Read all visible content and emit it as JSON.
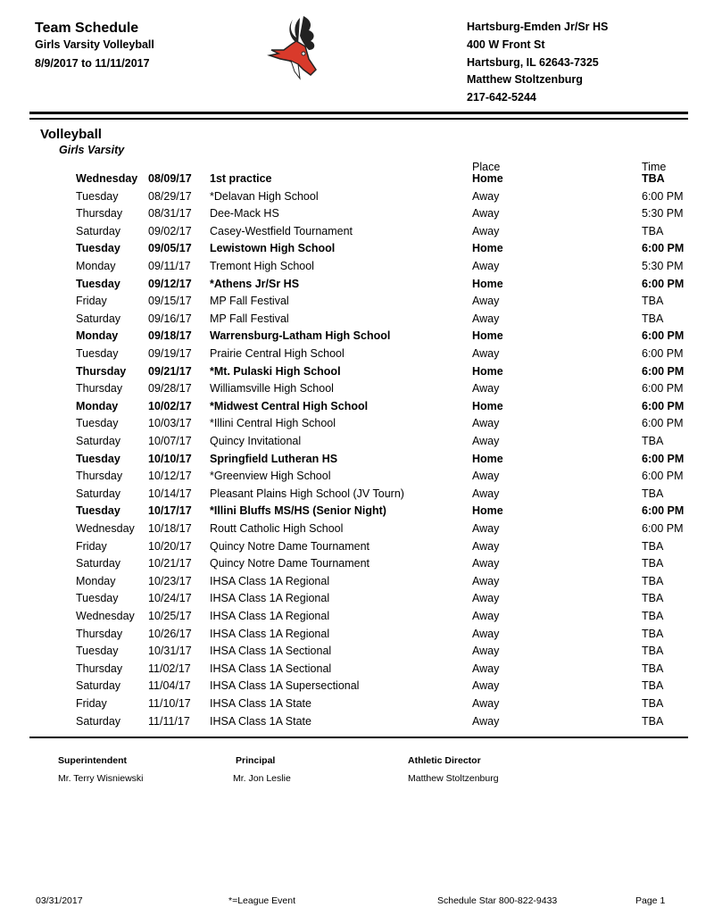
{
  "header": {
    "title": "Team Schedule",
    "subtitle": "Girls Varsity Volleyball",
    "date_range": "8/9/2017 to 11/11/2017",
    "school": "Hartsburg-Emden Jr/Sr HS",
    "address": "400 W Front St",
    "city": "Hartsburg, IL 62643-7325",
    "contact": "Matthew Stoltzenburg",
    "phone": "217-642-5244",
    "logo": "red-deer-mascot-logo"
  },
  "section": {
    "sport": "Volleyball",
    "level": "Girls Varsity",
    "place_header": "Place",
    "time_header": "Time"
  },
  "games": [
    {
      "day": "Wednesday",
      "date": "08/09/17",
      "opponent": "1st practice",
      "place": "Home",
      "time": "TBA"
    },
    {
      "day": "Tuesday",
      "date": "08/29/17",
      "opponent": "*Delavan High School",
      "place": "Away",
      "time": "6:00 PM"
    },
    {
      "day": "Thursday",
      "date": "08/31/17",
      "opponent": "Dee-Mack HS",
      "place": "Away",
      "time": "5:30 PM"
    },
    {
      "day": "Saturday",
      "date": "09/02/17",
      "opponent": "Casey-Westfield Tournament",
      "place": "Away",
      "time": "TBA"
    },
    {
      "day": "Tuesday",
      "date": "09/05/17",
      "opponent": "Lewistown High School",
      "place": "Home",
      "time": "6:00 PM"
    },
    {
      "day": "Monday",
      "date": "09/11/17",
      "opponent": "Tremont High School",
      "place": "Away",
      "time": "5:30 PM"
    },
    {
      "day": "Tuesday",
      "date": "09/12/17",
      "opponent": "*Athens Jr/Sr HS",
      "place": "Home",
      "time": "6:00 PM"
    },
    {
      "day": "Friday",
      "date": "09/15/17",
      "opponent": "MP Fall Festival",
      "place": "Away",
      "time": "TBA"
    },
    {
      "day": "Saturday",
      "date": "09/16/17",
      "opponent": "MP Fall Festival",
      "place": "Away",
      "time": "TBA"
    },
    {
      "day": "Monday",
      "date": "09/18/17",
      "opponent": "Warrensburg-Latham High School",
      "place": "Home",
      "time": "6:00 PM"
    },
    {
      "day": "Tuesday",
      "date": "09/19/17",
      "opponent": "Prairie Central High School",
      "place": "Away",
      "time": "6:00 PM"
    },
    {
      "day": "Thursday",
      "date": "09/21/17",
      "opponent": "*Mt. Pulaski High School",
      "place": "Home",
      "time": "6:00 PM"
    },
    {
      "day": "Thursday",
      "date": "09/28/17",
      "opponent": "Williamsville High School",
      "place": "Away",
      "time": "6:00 PM"
    },
    {
      "day": "Monday",
      "date": "10/02/17",
      "opponent": "*Midwest Central High School",
      "place": "Home",
      "time": "6:00 PM"
    },
    {
      "day": "Tuesday",
      "date": "10/03/17",
      "opponent": "*Illini Central High School",
      "place": "Away",
      "time": "6:00 PM"
    },
    {
      "day": "Saturday",
      "date": "10/07/17",
      "opponent": "Quincy Invitational",
      "place": "Away",
      "time": "TBA"
    },
    {
      "day": "Tuesday",
      "date": "10/10/17",
      "opponent": "Springfield Lutheran HS",
      "place": "Home",
      "time": "6:00 PM"
    },
    {
      "day": "Thursday",
      "date": "10/12/17",
      "opponent": "*Greenview High School",
      "place": "Away",
      "time": "6:00 PM"
    },
    {
      "day": "Saturday",
      "date": "10/14/17",
      "opponent": "Pleasant Plains High School (JV Tourn)",
      "place": "Away",
      "time": "TBA"
    },
    {
      "day": "Tuesday",
      "date": "10/17/17",
      "opponent": "*Illini Bluffs MS/HS (Senior Night)",
      "place": "Home",
      "time": "6:00 PM"
    },
    {
      "day": "Wednesday",
      "date": "10/18/17",
      "opponent": "Routt Catholic High School",
      "place": "Away",
      "time": "6:00 PM"
    },
    {
      "day": "Friday",
      "date": "10/20/17",
      "opponent": "Quincy Notre Dame Tournament",
      "place": "Away",
      "time": "TBA"
    },
    {
      "day": "Saturday",
      "date": "10/21/17",
      "opponent": "Quincy Notre Dame Tournament",
      "place": "Away",
      "time": "TBA"
    },
    {
      "day": "Monday",
      "date": "10/23/17",
      "opponent": "IHSA Class 1A Regional",
      "place": "Away",
      "time": "TBA"
    },
    {
      "day": "Tuesday",
      "date": "10/24/17",
      "opponent": "IHSA Class 1A Regional",
      "place": "Away",
      "time": "TBA"
    },
    {
      "day": "Wednesday",
      "date": "10/25/17",
      "opponent": "IHSA Class 1A Regional",
      "place": "Away",
      "time": "TBA"
    },
    {
      "day": "Thursday",
      "date": "10/26/17",
      "opponent": "IHSA Class 1A Regional",
      "place": "Away",
      "time": "TBA"
    },
    {
      "day": "Tuesday",
      "date": "10/31/17",
      "opponent": "IHSA Class 1A Sectional",
      "place": "Away",
      "time": "TBA"
    },
    {
      "day": "Thursday",
      "date": "11/02/17",
      "opponent": "IHSA Class 1A Sectional",
      "place": "Away",
      "time": "TBA"
    },
    {
      "day": "Saturday",
      "date": "11/04/17",
      "opponent": "IHSA Class 1A Supersectional",
      "place": "Away",
      "time": "TBA"
    },
    {
      "day": "Friday",
      "date": "11/10/17",
      "opponent": "IHSA Class 1A State",
      "place": "Away",
      "time": "TBA"
    },
    {
      "day": "Saturday",
      "date": "11/11/17",
      "opponent": "IHSA Class 1A State",
      "place": "Away",
      "time": "TBA"
    }
  ],
  "staff": [
    {
      "title": "Superintendent",
      "name": "Mr. Terry Wisniewski"
    },
    {
      "title": "Principal",
      "name": "Mr. Jon Leslie"
    },
    {
      "title": "Athletic Director",
      "name": "Matthew Stoltzenburg"
    }
  ],
  "footer": {
    "date": "03/31/2017",
    "legend": "*=League Event",
    "vendor": "Schedule Star 800-822-9433",
    "page": "Page 1"
  }
}
